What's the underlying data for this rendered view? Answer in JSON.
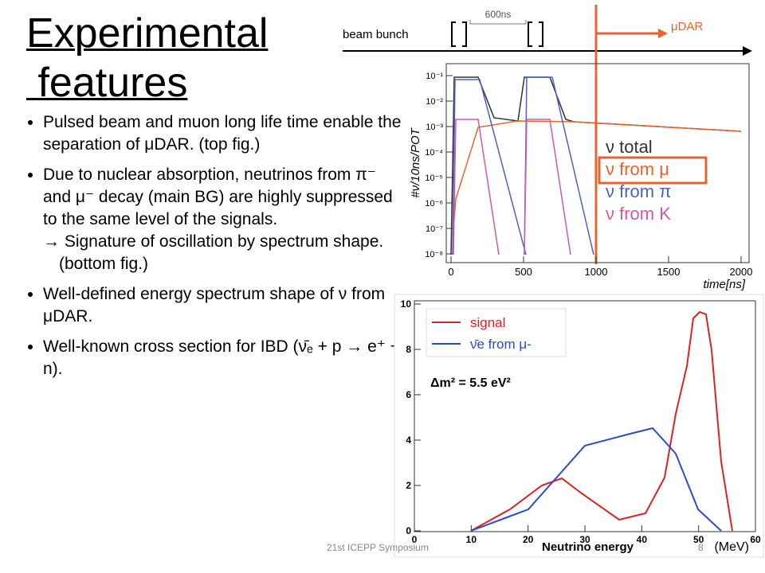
{
  "title": [
    "Experimental",
    " features"
  ],
  "bullets": [
    {
      "text": "Pulsed beam and muon long life time enable the separation of μDAR. (top fig.)"
    },
    {
      "text": "Due to nuclear absorption, neutrinos from π⁻ and μ⁻ decay (main BG) are highly suppressed to the same level of the signals.",
      "sub": "→ Signature of oscillation by spectrum shape. (bottom fig.)"
    },
    {
      "text": "Well-defined energy spectrum shape of ν from μDAR."
    },
    {
      "text": "Well-known cross section for IBD (ν̄ₑ + p → e⁺ + n)."
    }
  ],
  "top_figure": {
    "beam_label": "beam bunch",
    "interval": "600ns",
    "dar_label": "μDAR",
    "y_label": "#ν/10ns/POT",
    "x_label": "time[ns]",
    "x_ticks": [
      "0",
      "500",
      "1000",
      "1500",
      "2000"
    ],
    "y_ticks": [
      "10⁻¹",
      "10⁻²",
      "10⁻³",
      "10⁻⁴",
      "10⁻⁵",
      "10⁻⁶",
      "10⁻⁷",
      "10⁻⁸"
    ],
    "legend": [
      "ν total",
      "ν from μ",
      "ν from π",
      "ν from K"
    ]
  },
  "bottom_figure": {
    "legend": [
      "signal",
      "ν̄e from μ-"
    ],
    "annotation": "Δm² = 5.5 eV²",
    "x_label": "(MeV)",
    "caption": "Neutrino energy",
    "x_ticks": [
      "0",
      "10",
      "20",
      "30",
      "40",
      "50",
      "60"
    ],
    "y_ticks": [
      "0",
      "2",
      "4",
      "6",
      "8",
      "10"
    ]
  },
  "footer": {
    "event": "21st ICEPP Symposium",
    "page": "8"
  }
}
